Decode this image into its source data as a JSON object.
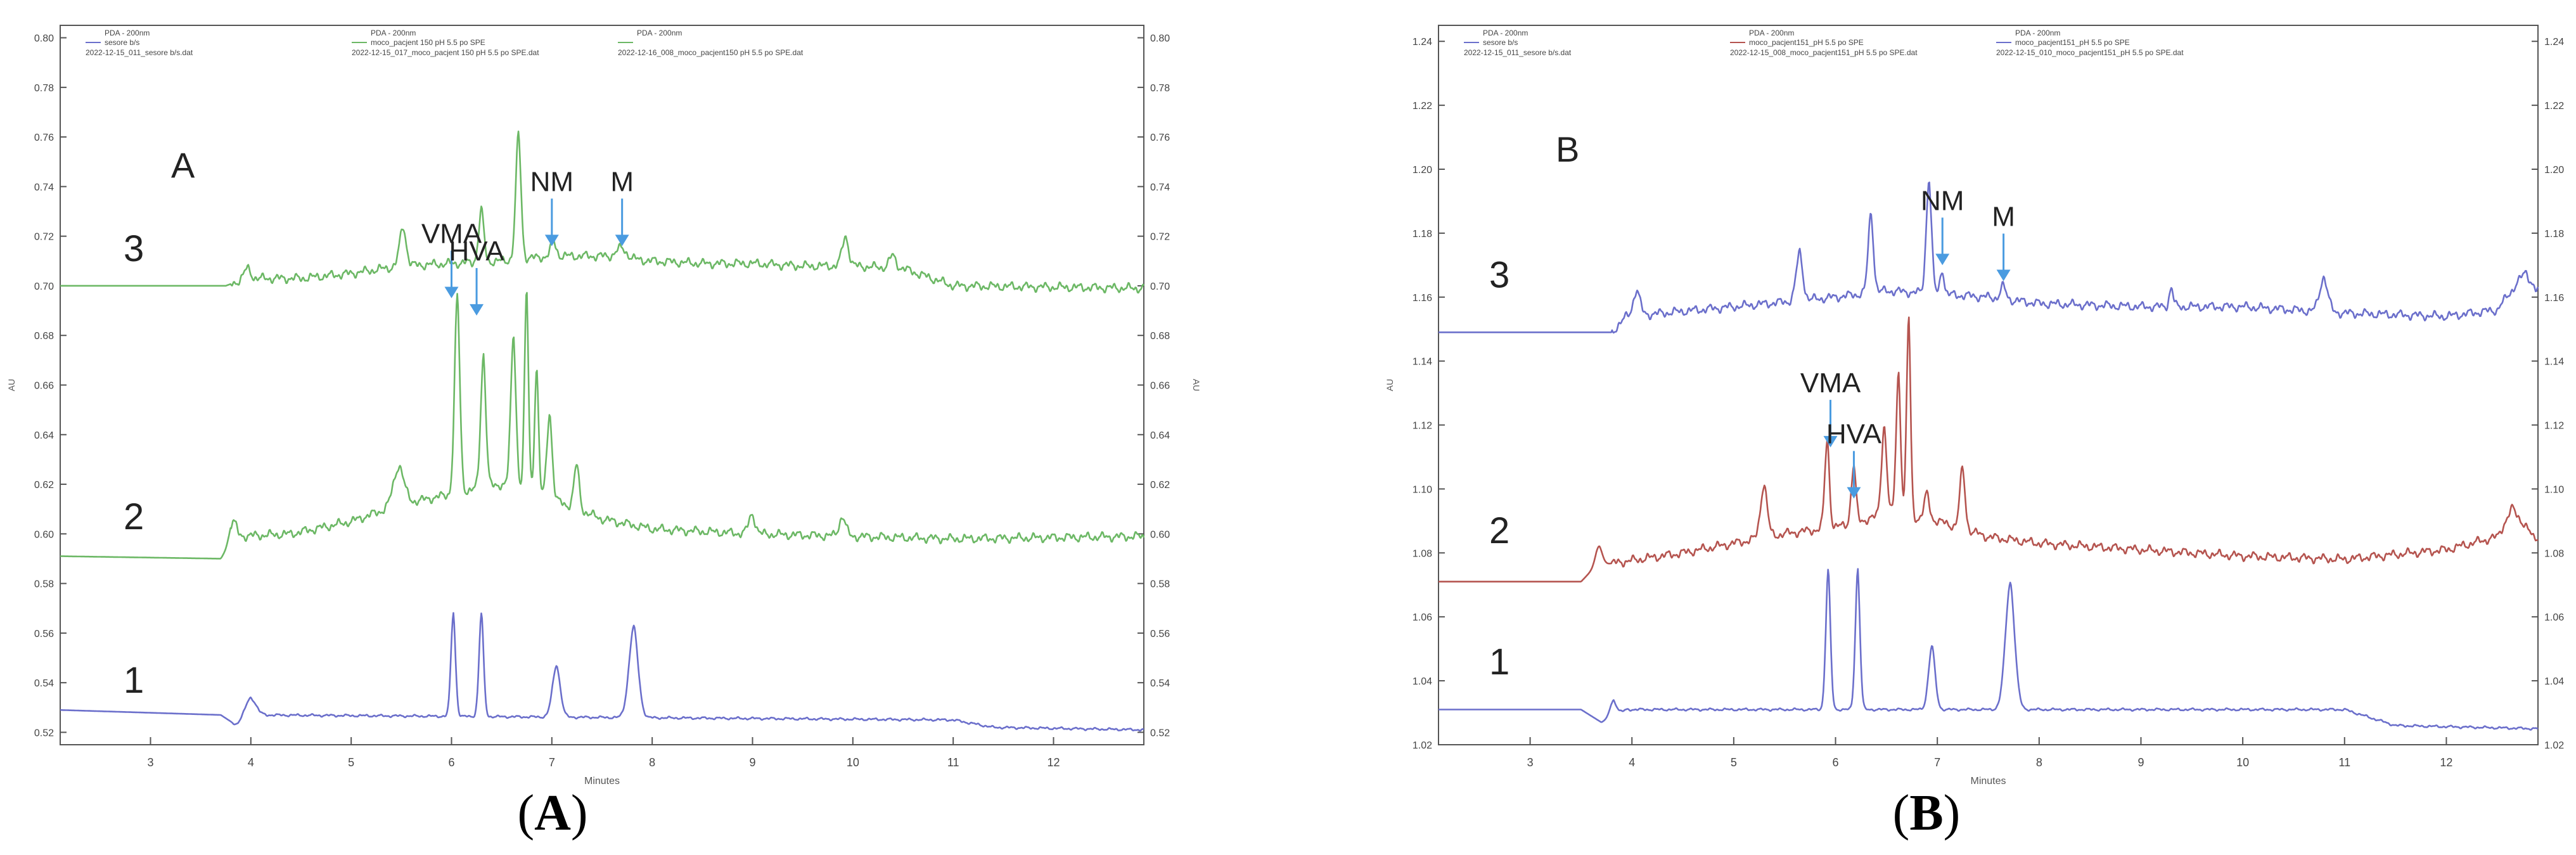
{
  "figure": {
    "panels": [
      {
        "id": "A",
        "letter": "A",
        "caption": {
          "open": "(",
          "letter": "A",
          "close": ")"
        },
        "x_axis_label": "Minutes",
        "left_axis_label": "AU",
        "right_axis_label": "AU",
        "legend": [
          {
            "line1": "PDA - 200nm",
            "line2": "sesore b/s",
            "line3": "2022-12-15_011_sesore b/s.dat",
            "color": "#6b6fcb"
          },
          {
            "line1": "PDA - 200nm",
            "line2": "moco_pacjent 150 pH 5.5 po SPE",
            "line3": "2022-12-15_017_moco_pacjent 150 pH 5.5 po SPE.dat",
            "color": "#6cb865"
          },
          {
            "line1": "PDA - 200nm",
            "line2": "",
            "line3": "2022-12-16_008_moco_pacjent150 pH 5.5 po SPE.dat",
            "color": "#6cb865"
          }
        ],
        "trace_labels": [
          "3",
          "2",
          "1"
        ],
        "peak_labels": [
          "NM",
          "M",
          "VMA",
          "HVA"
        ]
      },
      {
        "id": "B",
        "letter": "B",
        "caption": {
          "open": "(",
          "letter": "B",
          "close": ")"
        },
        "x_axis_label": "Minutes",
        "left_axis_label": "AU",
        "right_axis_label": "AU",
        "legend": [
          {
            "line1": "PDA - 200nm",
            "line2": "sesore b/s",
            "line3": "2022-12-15_011_sesore b/s.dat",
            "color": "#6b6fcb"
          },
          {
            "line1": "PDA - 200nm",
            "line2": "moco_pacjent151_pH 5.5 po SPE",
            "line3": "2022-12-15_008_moco_pacjent151_pH 5.5 po SPE.dat",
            "color": "#b5544f"
          },
          {
            "line1": "PDA - 200nm",
            "line2": "moco_pacjent151_pH 5.5 po SPE",
            "line3": "2022-12-15_010_moco_pacjent151_pH 5.5 po SPE.dat",
            "color": "#6b6fcb"
          }
        ],
        "trace_labels": [
          "3",
          "2",
          "1"
        ],
        "peak_labels": [
          "NM",
          "M",
          "VMA",
          "HVA"
        ]
      }
    ]
  },
  "chart_data": [
    {
      "type": "line",
      "panel": "A",
      "xlabel": "Minutes",
      "ylabel": "AU",
      "xlim": [
        2.1,
        12.9
      ],
      "ylim": [
        0.515,
        0.805
      ],
      "x_ticks": [
        3,
        4,
        5,
        6,
        7,
        8,
        9,
        10,
        11,
        12
      ],
      "y_ticks": [
        0.52,
        0.54,
        0.56,
        0.58,
        0.6,
        0.62,
        0.64,
        0.66,
        0.68,
        0.7,
        0.72,
        0.74,
        0.76,
        0.78,
        0.8
      ],
      "y_tick_labels_left": [
        "0.52",
        "0.54",
        "0.56",
        "0.58",
        "0.60",
        "0.62",
        "0.64",
        "0.66",
        "0.68",
        "0.70",
        "0.72",
        "0.74",
        "0.76",
        "0.78",
        "0.80"
      ],
      "y_tick_labels_right": [
        "0.52",
        "0.54",
        "0.56",
        "0.58",
        "0.60",
        "0.62",
        "0.64",
        "0.66",
        "0.68",
        "0.70",
        "0.72",
        "0.74",
        "0.76",
        "0.78",
        "0.80"
      ],
      "series": [
        {
          "label": "1",
          "color": "#6b6fcb",
          "baseline": [
            [
              2.1,
              0.529
            ],
            [
              3.7,
              0.527
            ],
            [
              3.85,
              0.523
            ],
            [
              4.05,
              0.527
            ],
            [
              11.0,
              0.525
            ],
            [
              11.4,
              0.522
            ],
            [
              12.9,
              0.521
            ]
          ],
          "peaks": [
            [
              4.0,
              0.008,
              0.08
            ],
            [
              6.02,
              0.042,
              0.035
            ],
            [
              6.3,
              0.042,
              0.035
            ],
            [
              7.05,
              0.021,
              0.06
            ],
            [
              7.82,
              0.037,
              0.07
            ]
          ]
        },
        {
          "label": "2",
          "color": "#6cb865",
          "baseline": [
            [
              2.1,
              0.591
            ],
            [
              3.7,
              0.59
            ],
            [
              3.85,
              0.599
            ],
            [
              4.4,
              0.6
            ],
            [
              5.0,
              0.605
            ],
            [
              5.5,
              0.612
            ],
            [
              6.0,
              0.616
            ],
            [
              6.5,
              0.62
            ],
            [
              7.0,
              0.614
            ],
            [
              7.5,
              0.606
            ],
            [
              8.0,
              0.602
            ],
            [
              9.0,
              0.6
            ],
            [
              10.0,
              0.599
            ],
            [
              11.0,
              0.598
            ],
            [
              12.9,
              0.599
            ]
          ],
          "peaks": [
            [
              3.82,
              0.008,
              0.05
            ],
            [
              5.48,
              0.016,
              0.08
            ],
            [
              6.06,
              0.08,
              0.04
            ],
            [
              6.32,
              0.054,
              0.04
            ],
            [
              6.62,
              0.062,
              0.04
            ],
            [
              6.75,
              0.082,
              0.03
            ],
            [
              6.85,
              0.052,
              0.03
            ],
            [
              6.98,
              0.035,
              0.04
            ],
            [
              7.25,
              0.018,
              0.04
            ],
            [
              9.0,
              0.008,
              0.05
            ],
            [
              9.9,
              0.008,
              0.05
            ]
          ]
        },
        {
          "label": "3",
          "color": "#6cb865",
          "baseline": [
            [
              2.1,
              0.7
            ],
            [
              3.75,
              0.7
            ],
            [
              3.95,
              0.703
            ],
            [
              4.5,
              0.703
            ],
            [
              5.0,
              0.705
            ],
            [
              5.5,
              0.708
            ],
            [
              6.0,
              0.709
            ],
            [
              6.5,
              0.71
            ],
            [
              7.0,
              0.712
            ],
            [
              7.5,
              0.712
            ],
            [
              8.0,
              0.71
            ],
            [
              8.5,
              0.709
            ],
            [
              9.0,
              0.709
            ],
            [
              9.5,
              0.708
            ],
            [
              10.0,
              0.708
            ],
            [
              10.5,
              0.707
            ],
            [
              11.0,
              0.7
            ],
            [
              12.9,
              0.699
            ]
          ],
          "peaks": [
            [
              3.97,
              0.004,
              0.05
            ],
            [
              5.52,
              0.016,
              0.05
            ],
            [
              6.3,
              0.021,
              0.04
            ],
            [
              6.67,
              0.051,
              0.04
            ],
            [
              7.02,
              0.006,
              0.04
            ],
            [
              7.7,
              0.004,
              0.08
            ],
            [
              9.93,
              0.012,
              0.05
            ],
            [
              10.4,
              0.005,
              0.05
            ]
          ]
        }
      ],
      "annotations": [
        {
          "text": "NM",
          "x": 7.0,
          "y": 0.716
        },
        {
          "text": "M",
          "x": 7.7,
          "y": 0.716
        },
        {
          "text": "VMA",
          "x": 6.0,
          "y": 0.695
        },
        {
          "text": "HVA",
          "x": 6.25,
          "y": 0.688
        }
      ]
    },
    {
      "type": "line",
      "panel": "B",
      "xlabel": "Minutes",
      "ylabel": "AU",
      "xlim": [
        2.1,
        12.9
      ],
      "ylim": [
        1.02,
        1.245
      ],
      "x_ticks": [
        3,
        4,
        5,
        6,
        7,
        8,
        9,
        10,
        11,
        12
      ],
      "y_ticks": [
        1.02,
        1.04,
        1.06,
        1.08,
        1.1,
        1.12,
        1.14,
        1.16,
        1.18,
        1.2,
        1.22,
        1.24
      ],
      "y_tick_labels_left": [
        "1.02",
        "1.04",
        "1.06",
        "1.08",
        "1.10",
        "1.12",
        "1.14",
        "1.16",
        "1.18",
        "1.20",
        "1.22",
        "1.24"
      ],
      "y_tick_labels_right": [
        "1.02",
        "1.04",
        "1.06",
        "1.08",
        "1.10",
        "1.12",
        "1.14",
        "1.16",
        "1.18",
        "1.20",
        "1.22",
        "1.24"
      ],
      "series": [
        {
          "label": "1",
          "color": "#6b6fcb",
          "baseline": [
            [
              2.1,
              1.031
            ],
            [
              3.5,
              1.031
            ],
            [
              3.7,
              1.027
            ],
            [
              3.95,
              1.031
            ],
            [
              11.0,
              1.031
            ],
            [
              11.5,
              1.026
            ],
            [
              12.9,
              1.025
            ]
          ],
          "peaks": [
            [
              3.82,
              0.005,
              0.05
            ],
            [
              5.93,
              0.044,
              0.035
            ],
            [
              6.22,
              0.044,
              0.035
            ],
            [
              6.95,
              0.02,
              0.05
            ],
            [
              7.72,
              0.04,
              0.07
            ]
          ]
        },
        {
          "label": "2",
          "color": "#b5544f",
          "baseline": [
            [
              2.1,
              1.071
            ],
            [
              3.5,
              1.071
            ],
            [
              3.65,
              1.076
            ],
            [
              4.5,
              1.08
            ],
            [
              5.0,
              1.083
            ],
            [
              5.5,
              1.086
            ],
            [
              6.0,
              1.088
            ],
            [
              6.5,
              1.092
            ],
            [
              7.0,
              1.09
            ],
            [
              7.5,
              1.085
            ],
            [
              8.0,
              1.083
            ],
            [
              9.0,
              1.081
            ],
            [
              10.0,
              1.079
            ],
            [
              11.0,
              1.078
            ],
            [
              12.0,
              1.081
            ],
            [
              12.5,
              1.085
            ],
            [
              12.65,
              1.094
            ],
            [
              12.85,
              1.085
            ]
          ],
          "peaks": [
            [
              3.68,
              0.006,
              0.05
            ],
            [
              5.3,
              0.017,
              0.05
            ],
            [
              5.92,
              0.028,
              0.035
            ],
            [
              6.18,
              0.018,
              0.035
            ],
            [
              6.48,
              0.028,
              0.04
            ],
            [
              6.62,
              0.045,
              0.035
            ],
            [
              6.72,
              0.063,
              0.03
            ],
            [
              6.9,
              0.008,
              0.04
            ],
            [
              7.25,
              0.019,
              0.04
            ]
          ]
        },
        {
          "label": "3",
          "color": "#6b6fcb",
          "baseline": [
            [
              2.1,
              1.149
            ],
            [
              3.8,
              1.149
            ],
            [
              3.95,
              1.154
            ],
            [
              5.0,
              1.157
            ],
            [
              6.0,
              1.16
            ],
            [
              6.5,
              1.162
            ],
            [
              7.0,
              1.161
            ],
            [
              7.5,
              1.16
            ],
            [
              8.0,
              1.158
            ],
            [
              9.0,
              1.157
            ],
            [
              10.0,
              1.157
            ],
            [
              11.0,
              1.155
            ],
            [
              12.0,
              1.154
            ],
            [
              12.5,
              1.156
            ],
            [
              12.78,
              1.168
            ],
            [
              12.88,
              1.162
            ]
          ],
          "peaks": [
            [
              4.05,
              0.008,
              0.05
            ],
            [
              5.65,
              0.015,
              0.05
            ],
            [
              6.35,
              0.025,
              0.04
            ],
            [
              6.92,
              0.036,
              0.04
            ],
            [
              7.05,
              0.008,
              0.03
            ],
            [
              7.65,
              0.004,
              0.04
            ],
            [
              9.3,
              0.006,
              0.03
            ],
            [
              10.8,
              0.011,
              0.06
            ]
          ]
        }
      ],
      "annotations": [
        {
          "text": "NM",
          "x": 7.05,
          "y": 1.17
        },
        {
          "text": "M",
          "x": 7.65,
          "y": 1.165
        },
        {
          "text": "VMA",
          "x": 5.95,
          "y": 1.113
        },
        {
          "text": "HVA",
          "x": 6.18,
          "y": 1.097
        }
      ]
    }
  ]
}
